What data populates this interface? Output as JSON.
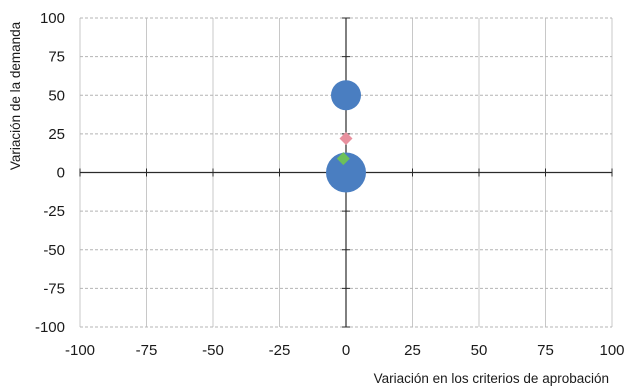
{
  "chart_data": {
    "type": "scatter",
    "title": "",
    "xlabel": "Variación en los criterios de aprobación",
    "ylabel": "Variación de la demanda",
    "xlim": [
      -100,
      100
    ],
    "ylim": [
      -100,
      100
    ],
    "xticks": [
      -100,
      -75,
      -50,
      -25,
      0,
      25,
      50,
      75,
      100
    ],
    "yticks": [
      -100,
      -75,
      -50,
      -25,
      0,
      25,
      50,
      75,
      100
    ],
    "xtick_labels": [
      "-100",
      "-75",
      "-50",
      "-25",
      "0",
      "25",
      "50",
      "75",
      "100"
    ],
    "ytick_labels": [
      "-100",
      "-75",
      "-50",
      "-25",
      "0",
      "25",
      "50",
      "75",
      "100"
    ],
    "grid": {
      "x": "solid light gray",
      "y": "dashed light gray"
    },
    "legend": "none",
    "series": [
      {
        "marker": "circle",
        "color": "#4a7ec1",
        "points": [
          {
            "x": 0,
            "y": 50,
            "size": "medium"
          },
          {
            "x": 0,
            "y": 0,
            "size": "large"
          }
        ]
      },
      {
        "marker": "diamond",
        "color": "#e8909e",
        "points": [
          {
            "x": 0,
            "y": 22
          }
        ]
      },
      {
        "marker": "diamond",
        "color": "#6cc05a",
        "points": [
          {
            "x": -1,
            "y": 9
          }
        ]
      }
    ]
  }
}
